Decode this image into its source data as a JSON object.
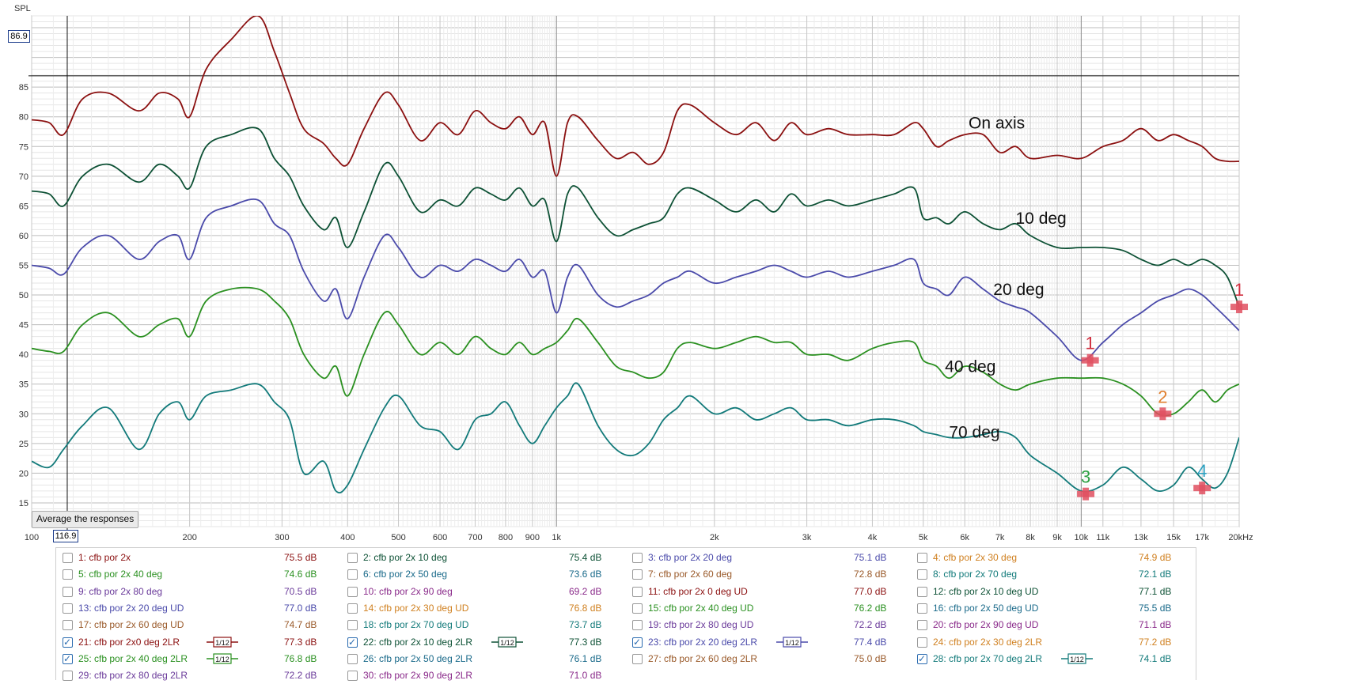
{
  "chart_data": {
    "type": "line",
    "ylabel": "SPL",
    "xunit": "kHz",
    "x_log": true,
    "xlim": [
      100,
      20000
    ],
    "ylim": [
      11,
      97
    ],
    "yticks": [
      15,
      20,
      25,
      30,
      35,
      40,
      45,
      50,
      55,
      60,
      65,
      70,
      75,
      80,
      85
    ],
    "xticks": [
      {
        "v": 100,
        "l": "100"
      },
      {
        "v": 200,
        "l": "200"
      },
      {
        "v": 300,
        "l": "300"
      },
      {
        "v": 400,
        "l": "400"
      },
      {
        "v": 500,
        "l": "500"
      },
      {
        "v": 600,
        "l": "600"
      },
      {
        "v": 700,
        "l": "700"
      },
      {
        "v": 800,
        "l": "800"
      },
      {
        "v": 900,
        "l": "900"
      },
      {
        "v": 1000,
        "l": "1k"
      },
      {
        "v": 2000,
        "l": "2k"
      },
      {
        "v": 3000,
        "l": "3k"
      },
      {
        "v": 4000,
        "l": "4k"
      },
      {
        "v": 5000,
        "l": "5k"
      },
      {
        "v": 6000,
        "l": "6k"
      },
      {
        "v": 7000,
        "l": "7k"
      },
      {
        "v": 8000,
        "l": "8k"
      },
      {
        "v": 9000,
        "l": "9k"
      },
      {
        "v": 10000,
        "l": "10k"
      },
      {
        "v": 11000,
        "l": "11k"
      },
      {
        "v": 13000,
        "l": "13k"
      },
      {
        "v": 15000,
        "l": "15k"
      },
      {
        "v": 17000,
        "l": "17k"
      },
      {
        "v": 20000,
        "l": "20kHz"
      }
    ],
    "cursor": {
      "x": 116.9,
      "y": 86.9,
      "x_label": "116.9",
      "y_label": "86.9"
    },
    "series": [
      {
        "name": "21: cfb por 2x0 deg 2LR",
        "color": "#8b1010",
        "x": [
          100,
          108,
          115,
          125,
          140,
          160,
          175,
          190,
          200,
          215,
          240,
          270,
          290,
          310,
          330,
          360,
          380,
          400,
          430,
          470,
          500,
          550,
          600,
          650,
          700,
          750,
          800,
          850,
          900,
          950,
          1000,
          1050,
          1100,
          1200,
          1300,
          1400,
          1500,
          1600,
          1700,
          1800,
          2000,
          2200,
          2400,
          2600,
          2800,
          3000,
          3300,
          3600,
          4000,
          4400,
          4800,
          5000,
          5300,
          5600,
          6000,
          6500,
          7000,
          7500,
          8000,
          9000,
          10000,
          11000,
          12000,
          13000,
          14000,
          15000,
          16000,
          17000,
          18000,
          19000,
          20000
        ],
        "y": [
          79.5,
          79,
          77,
          83,
          84,
          81,
          84,
          83,
          80,
          88,
          93,
          97,
          91,
          84,
          78,
          75.5,
          73,
          72,
          78,
          84,
          82,
          76,
          79,
          77,
          81,
          79,
          78,
          80,
          77,
          79,
          70,
          79,
          80,
          76,
          73,
          74,
          72,
          74,
          81,
          82,
          79,
          77,
          79,
          76,
          79,
          77,
          78,
          77,
          77,
          77,
          79,
          78,
          75,
          76,
          77,
          77,
          74,
          75,
          73,
          73.5,
          73,
          75,
          76,
          78,
          76,
          77,
          76,
          75,
          73,
          72.5,
          72.5
        ]
      },
      {
        "name": "22: cfb por 2x 10 deg 2LR",
        "color": "#0d5135",
        "x": [
          100,
          108,
          115,
          125,
          140,
          160,
          175,
          190,
          200,
          215,
          240,
          270,
          290,
          310,
          330,
          360,
          380,
          400,
          430,
          470,
          500,
          550,
          600,
          650,
          700,
          750,
          800,
          850,
          900,
          950,
          1000,
          1050,
          1100,
          1200,
          1300,
          1400,
          1500,
          1600,
          1700,
          1800,
          2000,
          2200,
          2400,
          2600,
          2800,
          3000,
          3300,
          3600,
          4000,
          4400,
          4800,
          5000,
          5300,
          5600,
          6000,
          6500,
          7000,
          7500,
          8000,
          9000,
          10000,
          11000,
          12000,
          13000,
          14000,
          15000,
          16000,
          17000,
          18000,
          19000,
          20000
        ],
        "y": [
          67.5,
          67,
          65,
          70,
          72,
          69,
          72,
          70,
          68,
          75,
          77,
          78,
          73,
          70,
          65,
          61,
          63,
          58,
          64,
          72,
          70,
          64,
          66,
          65,
          68,
          67,
          66,
          68,
          65,
          66,
          59,
          67,
          68,
          63,
          60,
          61,
          62,
          63,
          67,
          68,
          66,
          64,
          66,
          64,
          67,
          65,
          66,
          65,
          66,
          67,
          68,
          63,
          63,
          62,
          64,
          62,
          61,
          62,
          60,
          58,
          58,
          58,
          57.5,
          56,
          55,
          56,
          55,
          56,
          55,
          53,
          48
        ]
      },
      {
        "name": "23: cfb por 2x 20 deg 2LR",
        "color": "#4a4aaa",
        "x": [
          100,
          108,
          115,
          125,
          140,
          160,
          175,
          190,
          200,
          215,
          240,
          270,
          290,
          310,
          330,
          360,
          380,
          400,
          430,
          470,
          500,
          550,
          600,
          650,
          700,
          750,
          800,
          850,
          900,
          950,
          1000,
          1050,
          1100,
          1200,
          1300,
          1400,
          1500,
          1600,
          1700,
          1800,
          2000,
          2200,
          2400,
          2600,
          2800,
          3000,
          3300,
          3600,
          4000,
          4400,
          4800,
          5000,
          5300,
          5600,
          6000,
          6500,
          7000,
          7500,
          8000,
          9000,
          10000,
          11000,
          12000,
          13000,
          14000,
          15000,
          16000,
          17000,
          18000,
          19000,
          20000
        ],
        "y": [
          55,
          54.5,
          53.5,
          58,
          60,
          56,
          59,
          60,
          56,
          63,
          65,
          66,
          62,
          60,
          54,
          49,
          51,
          46,
          53,
          60,
          58,
          53,
          55,
          54,
          56,
          55,
          54,
          56,
          53,
          54,
          47,
          53,
          55,
          50,
          48,
          49,
          50,
          52,
          53,
          54,
          52,
          53,
          54,
          55,
          54,
          53,
          54,
          53,
          54,
          55,
          56,
          52,
          51,
          50,
          53,
          51,
          49,
          48,
          47,
          43,
          39,
          42,
          45,
          47,
          49,
          50,
          51,
          50,
          48,
          46,
          44
        ]
      },
      {
        "name": "25: cfb por 2x 40 deg 2LR",
        "color": "#2a9020",
        "x": [
          100,
          108,
          115,
          125,
          140,
          160,
          175,
          190,
          200,
          215,
          240,
          270,
          290,
          310,
          330,
          360,
          380,
          400,
          430,
          470,
          500,
          550,
          600,
          650,
          700,
          750,
          800,
          850,
          900,
          950,
          1000,
          1050,
          1100,
          1200,
          1300,
          1400,
          1500,
          1600,
          1700,
          1800,
          2000,
          2200,
          2400,
          2600,
          2800,
          3000,
          3300,
          3600,
          4000,
          4400,
          4800,
          5000,
          5300,
          5600,
          6000,
          6500,
          7000,
          7500,
          8000,
          9000,
          10000,
          11000,
          12000,
          13000,
          14000,
          15000,
          16000,
          17000,
          18000,
          19000,
          20000
        ],
        "y": [
          41,
          40.5,
          40.5,
          45,
          47,
          43,
          45,
          46,
          43,
          49,
          51,
          51,
          49,
          46,
          40,
          36,
          38,
          33,
          40,
          47,
          45,
          40,
          42,
          40,
          43,
          41,
          40,
          42,
          40,
          41,
          42,
          44,
          46,
          42,
          38,
          37,
          36,
          37,
          41,
          42,
          41,
          42,
          43,
          42,
          42,
          40,
          40,
          39,
          41,
          42,
          42,
          39,
          38,
          36,
          38,
          37,
          35,
          34,
          35,
          36,
          36,
          36,
          35,
          33,
          30,
          30,
          32,
          34,
          32,
          34,
          35
        ]
      },
      {
        "name": "28: cfb por 2x 70 deg 2LR",
        "color": "#127a7a",
        "x": [
          100,
          108,
          115,
          125,
          140,
          160,
          175,
          190,
          200,
          215,
          240,
          270,
          290,
          310,
          330,
          360,
          380,
          400,
          430,
          470,
          500,
          550,
          600,
          650,
          700,
          750,
          800,
          850,
          900,
          950,
          1000,
          1050,
          1100,
          1200,
          1300,
          1400,
          1500,
          1600,
          1700,
          1800,
          2000,
          2200,
          2400,
          2600,
          2800,
          3000,
          3300,
          3600,
          4000,
          4400,
          4800,
          5000,
          5300,
          5600,
          6000,
          6500,
          7000,
          7500,
          8000,
          9000,
          10000,
          11000,
          12000,
          13000,
          14000,
          15000,
          16000,
          17000,
          18000,
          19000,
          20000
        ],
        "y": [
          22,
          21,
          24,
          28,
          31,
          24,
          30,
          32,
          29,
          33,
          34,
          35,
          32,
          29,
          20,
          22,
          17,
          18,
          24,
          31,
          33,
          28,
          27,
          24,
          29,
          30,
          32,
          28,
          25,
          28,
          31,
          33,
          35,
          28,
          24,
          23,
          25,
          29,
          31,
          33,
          30,
          31,
          29,
          30,
          31,
          29,
          29,
          28,
          29,
          29,
          28,
          27,
          26.5,
          26,
          26,
          26.5,
          27,
          26,
          23,
          20,
          17,
          18,
          21,
          19,
          17,
          18,
          21,
          19,
          17.5,
          20,
          26
        ]
      }
    ],
    "annotations": [
      {
        "text": "On axis",
        "x": 6100,
        "y": 78
      },
      {
        "text": "10 deg",
        "x": 7500,
        "y": 62
      },
      {
        "text": "20 deg",
        "x": 6800,
        "y": 50
      },
      {
        "text": "40 deg",
        "x": 5500,
        "y": 37
      },
      {
        "text": "70 deg",
        "x": 5600,
        "y": 26
      }
    ],
    "markers": [
      {
        "label": "1",
        "x": 10400,
        "y": 39,
        "color": "#d03040"
      },
      {
        "label": "1",
        "x": 20000,
        "y": 48,
        "color": "#d03040"
      },
      {
        "label": "2",
        "x": 14300,
        "y": 30,
        "color": "#e08030"
      },
      {
        "label": "3",
        "x": 10200,
        "y": 16.5,
        "color": "#2aa040"
      },
      {
        "label": "4",
        "x": 17000,
        "y": 17.5,
        "color": "#2aa0c0"
      }
    ]
  },
  "button": {
    "average_label": "Average the responses"
  },
  "legend": [
    {
      "label": "1: cfb por 2x",
      "value": "75.5 dB",
      "color": "#8b1010",
      "checked": false
    },
    {
      "label": "2: cfb por 2x 10 deg",
      "value": "75.4 dB",
      "color": "#0d5135",
      "checked": false
    },
    {
      "label": "3: cfb por 2x 20 deg",
      "value": "75.1 dB",
      "color": "#4a4aaa",
      "checked": false
    },
    {
      "label": "4: cfb por 2x 30 deg",
      "value": "74.9 dB",
      "color": "#d08020",
      "checked": false
    },
    {
      "label": "5: cfb por 2x 40 deg",
      "value": "74.6 dB",
      "color": "#2a9020",
      "checked": false
    },
    {
      "label": "6: cfb por 2x 50 deg",
      "value": "73.6 dB",
      "color": "#1a6a8a",
      "checked": false
    },
    {
      "label": "7: cfb por 2x 60 deg",
      "value": "72.8 dB",
      "color": "#9a5a2a",
      "checked": false
    },
    {
      "label": "8: cfb por 2x 70 deg",
      "value": "72.1 dB",
      "color": "#127a7a",
      "checked": false
    },
    {
      "label": "9: cfb por 2x 80 deg",
      "value": "70.5 dB",
      "color": "#6a3a9a",
      "checked": false
    },
    {
      "label": "10: cfb por 2x 90 deg",
      "value": "69.2 dB",
      "color": "#8a2a8a",
      "checked": false
    },
    {
      "label": "11: cfb por 2x 0 deg UD",
      "value": "77.0 dB",
      "color": "#8b1010",
      "checked": false
    },
    {
      "label": "12: cfb por 2x 10 deg UD",
      "value": "77.1 dB",
      "color": "#0d5135",
      "checked": false
    },
    {
      "label": "13: cfb por 2x 20 deg UD",
      "value": "77.0 dB",
      "color": "#4a4aaa",
      "checked": false
    },
    {
      "label": "14: cfb por 2x 30 deg UD",
      "value": "76.8 dB",
      "color": "#d08020",
      "checked": false
    },
    {
      "label": "15: cfb por 2x 40 deg UD",
      "value": "76.2 dB",
      "color": "#2a9020",
      "checked": false
    },
    {
      "label": "16: cfb por 2x 50 deg UD",
      "value": "75.5 dB",
      "color": "#1a6a8a",
      "checked": false
    },
    {
      "label": "17: cfb por 2x 60 deg UD",
      "value": "74.7 dB",
      "color": "#9a5a2a",
      "checked": false
    },
    {
      "label": "18: cfb por 2x 70 deg UD",
      "value": "73.7 dB",
      "color": "#127a7a",
      "checked": false
    },
    {
      "label": "19: cfb por 2x 80 deg UD",
      "value": "72.2 dB",
      "color": "#6a3a9a",
      "checked": false
    },
    {
      "label": "20: cfb por 2x 90 deg UD",
      "value": "71.1 dB",
      "color": "#8a2a8a",
      "checked": false
    },
    {
      "label": "21: cfb por 2x0 deg 2LR",
      "value": "77.3 dB",
      "color": "#8b1010",
      "checked": true,
      "smoothing": "1/12"
    },
    {
      "label": "22: cfb por 2x 10 deg 2LR",
      "value": "77.3 dB",
      "color": "#0d5135",
      "checked": true,
      "smoothing": "1/12"
    },
    {
      "label": "23: cfb por 2x 20 deg 2LR",
      "value": "77.4 dB",
      "color": "#4a4aaa",
      "checked": true,
      "smoothing": "1/12"
    },
    {
      "label": "24: cfb por 2x 30 deg 2LR",
      "value": "77.2 dB",
      "color": "#d08020",
      "checked": false
    },
    {
      "label": "25: cfb por 2x 40 deg 2LR",
      "value": "76.8 dB",
      "color": "#2a9020",
      "checked": true,
      "smoothing": "1/12"
    },
    {
      "label": "26: cfb por 2x 50 deg 2LR",
      "value": "76.1 dB",
      "color": "#1a6a8a",
      "checked": false
    },
    {
      "label": "27: cfb por 2x 60 deg 2LR",
      "value": "75.0 dB",
      "color": "#9a5a2a",
      "checked": false
    },
    {
      "label": "28: cfb por 2x 70 deg 2LR",
      "value": "74.1 dB",
      "color": "#127a7a",
      "checked": true,
      "smoothing": "1/12"
    },
    {
      "label": "29: cfb por 2x 80 deg 2LR",
      "value": "72.2 dB",
      "color": "#6a3a9a",
      "checked": false
    },
    {
      "label": "30: cfb por 2x 90 deg 2LR",
      "value": "71.0 dB",
      "color": "#8a2a8a",
      "checked": false
    }
  ]
}
